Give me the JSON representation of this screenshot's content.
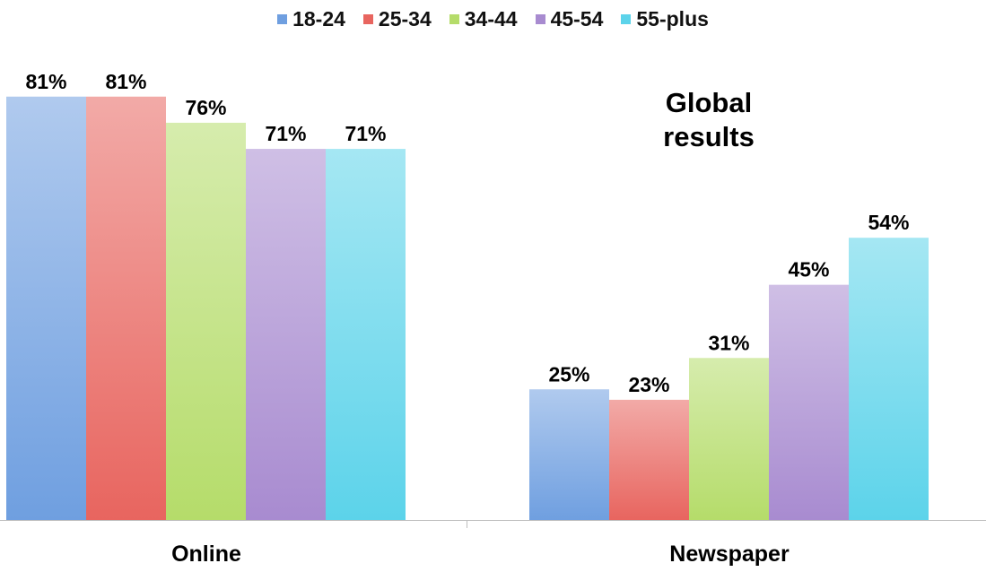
{
  "chart_data": {
    "type": "bar",
    "title": "Global\nresults",
    "categories": [
      "Online",
      "Newspaper"
    ],
    "series": [
      {
        "name": "18-24",
        "values": [
          81,
          25
        ],
        "value_labels": [
          "81%",
          "25%"
        ],
        "color": "#6f9fe0"
      },
      {
        "name": "25-34",
        "values": [
          81,
          23
        ],
        "value_labels": [
          "81%",
          "23%"
        ],
        "color": "#e8655f"
      },
      {
        "name": "34-44",
        "values": [
          76,
          31
        ],
        "value_labels": [
          "76%",
          "31%"
        ],
        "color": "#b5dc6a"
      },
      {
        "name": "45-54",
        "values": [
          71,
          45
        ],
        "value_labels": [
          "71%",
          "45%"
        ],
        "color": "#a88bd0"
      },
      {
        "name": "55-plus",
        "values": [
          71,
          54
        ],
        "value_labels": [
          "71%",
          "54%"
        ],
        "color": "#5cd3ea"
      }
    ],
    "ylim": [
      0,
      100
    ],
    "grid": false,
    "legend_position": "top-center",
    "value_labels_shown": true,
    "xlabel": "",
    "ylabel": ""
  }
}
